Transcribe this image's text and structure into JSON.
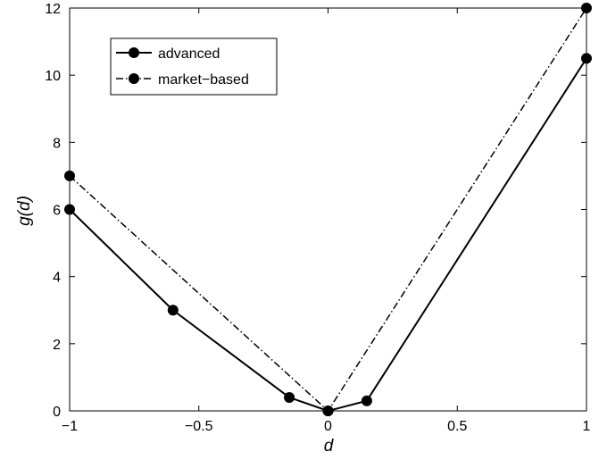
{
  "chart_data": {
    "type": "line",
    "title": "",
    "xlabel": "d",
    "ylabel": "g(d)",
    "xlim": [
      -1,
      1
    ],
    "ylim": [
      0,
      12
    ],
    "grid": false,
    "legend_position": "top-left",
    "x_ticks": [
      -1,
      -0.5,
      0,
      0.5,
      1
    ],
    "x_tick_labels": [
      "−1",
      "−0.5",
      "0",
      "0.5",
      "1"
    ],
    "y_ticks": [
      0,
      2,
      4,
      6,
      8,
      10,
      12
    ],
    "y_tick_labels": [
      "0",
      "2",
      "4",
      "6",
      "8",
      "10",
      "12"
    ],
    "series": [
      {
        "name": "advanced",
        "line_style": "solid",
        "color": "#000000",
        "marker": "filled-circle",
        "x": [
          -1,
          -0.6,
          -0.15,
          0,
          0.15,
          1
        ],
        "y": [
          6,
          3,
          0.4,
          0,
          0.3,
          10.5
        ]
      },
      {
        "name": "market−based",
        "line_style": "dash-dot",
        "color": "#000000",
        "marker": "filled-circle",
        "x": [
          -1,
          0,
          1
        ],
        "y": [
          7,
          0,
          12
        ]
      }
    ]
  }
}
